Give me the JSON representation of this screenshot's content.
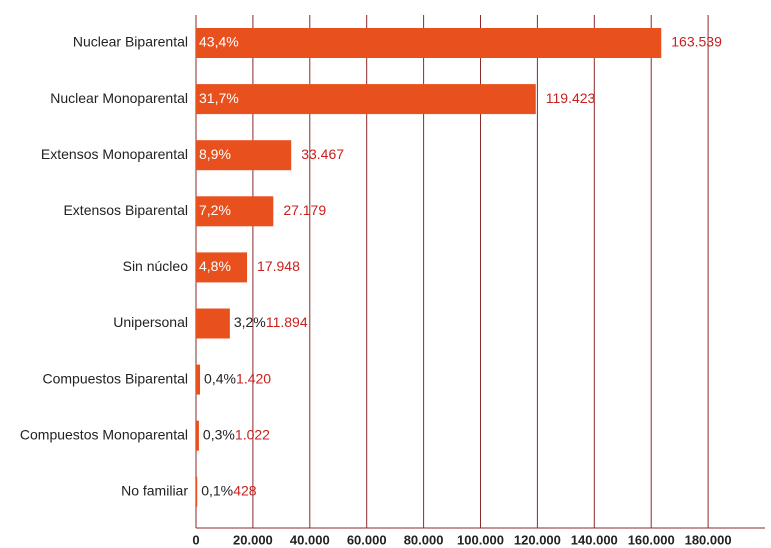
{
  "chart_data": {
    "type": "bar",
    "orientation": "horizontal",
    "categories": [
      "Nuclear Biparental",
      "Nuclear Monoparental",
      "Extensos Monoparental",
      "Extensos Biparental",
      "Sin núcleo",
      "Unipersonal",
      "Compuestos Biparental",
      "Compuestos Monoparental",
      "No familiar"
    ],
    "values": [
      163539,
      119423,
      33467,
      27179,
      17948,
      11894,
      1420,
      1022,
      428
    ],
    "value_labels": [
      "163.539",
      "119.423",
      "33.467",
      "27.179",
      "17.948",
      "11.894",
      "1.420",
      "1.022",
      "428"
    ],
    "percent_labels": [
      "43,4%",
      "31,7%",
      "8,9%",
      "7,2%",
      "4,8%",
      "3,2%",
      "0,4%",
      "0,3%",
      "0,1%"
    ],
    "color": "#e8501e",
    "xlim": [
      0,
      200000
    ],
    "xticks": [
      0,
      {
        "value": 20000,
        "label": "20.000"
      },
      {
        "value": 40000,
        "label": "40.000"
      },
      {
        "value": 60000,
        "label": "60.000"
      },
      {
        "value": 80000,
        "label": "80.000"
      },
      {
        "value": 100000,
        "label": "100.000"
      },
      {
        "value": 120000,
        "label": "120.000"
      },
      {
        "value": 140000,
        "label": "140.000"
      },
      {
        "value": 160000,
        "label": "160.000"
      },
      {
        "value": 180000,
        "label": "180.000"
      }
    ],
    "grid": true
  }
}
